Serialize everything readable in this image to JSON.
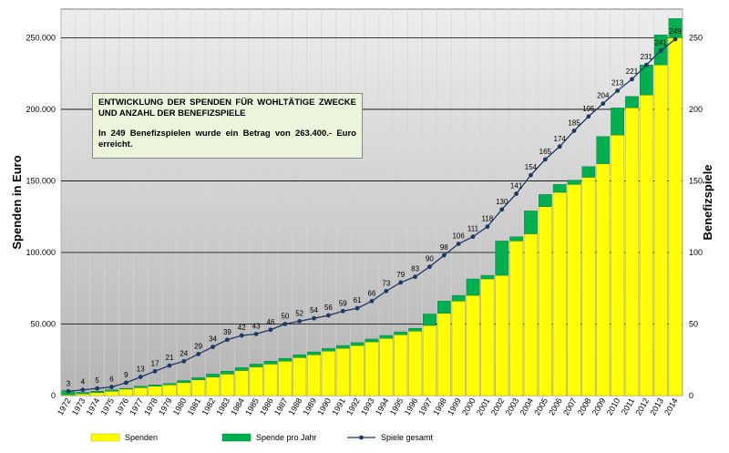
{
  "chart_data": {
    "type": "bar",
    "categories": [
      "1972",
      "1973",
      "1974",
      "1975",
      "1976",
      "1977",
      "1978",
      "1979",
      "1980",
      "1981",
      "1982",
      "1983",
      "1984",
      "1985",
      "1986",
      "1987",
      "1988",
      "1989",
      "1990",
      "1991",
      "1992",
      "1993",
      "1994",
      "1995",
      "1996",
      "1997",
      "1998",
      "1999",
      "2000",
      "2001",
      "2002",
      "2003",
      "2004",
      "2005",
      "2006",
      "2007",
      "2008",
      "2009",
      "2010",
      "2011",
      "2012",
      "2013",
      "2014"
    ],
    "series": [
      {
        "name": "Spenden",
        "kind": "bar",
        "axis": "left",
        "color": "#ffff00",
        "values": [
          500,
          1200,
          2000,
          3000,
          4500,
          5500,
          6500,
          7500,
          9000,
          11000,
          13000,
          15000,
          17500,
          20000,
          22000,
          24000,
          26500,
          28500,
          31000,
          33000,
          35000,
          37500,
          40000,
          42500,
          45000,
          49000,
          57500,
          66000,
          70000,
          81500,
          84000,
          108000,
          113000,
          132000,
          142000,
          147500,
          152500,
          162000,
          182000,
          201000,
          210000,
          231000,
          250000
        ]
      },
      {
        "name": "Spende pro Jahr",
        "kind": "bar-stacked",
        "axis": "left",
        "color": "#00b050",
        "values": [
          3000,
          1000,
          1000,
          1000,
          500,
          1000,
          1000,
          1000,
          1500,
          1500,
          2000,
          2000,
          2000,
          2000,
          2000,
          2000,
          2000,
          2000,
          2000,
          2000,
          2000,
          2000,
          2000,
          2000,
          2000,
          8000,
          8500,
          4000,
          11500,
          2500,
          24000,
          3000,
          16000,
          8500,
          5500,
          3000,
          7500,
          19000,
          19000,
          8000,
          21000,
          21000,
          13400
        ]
      },
      {
        "name": "Spiele gesamt",
        "kind": "line",
        "axis": "right",
        "color": "#1f3864",
        "values": [
          3,
          4,
          5,
          6,
          9,
          13,
          17,
          21,
          24,
          29,
          34,
          39,
          42,
          43,
          46,
          50,
          52,
          54,
          56,
          59,
          61,
          66,
          73,
          79,
          83,
          90,
          98,
          106,
          111,
          118,
          130,
          141,
          154,
          165,
          174,
          185,
          195,
          204,
          213,
          221,
          231,
          241,
          249
        ]
      }
    ],
    "y_left": {
      "label": "Spenden in Euro",
      "ticks": [
        "0",
        "50.000",
        "100.000",
        "150.000",
        "200.000",
        "250.000"
      ],
      "range": [
        0,
        270000
      ]
    },
    "y_right": {
      "label": "Benefizspiele",
      "ticks": [
        "0",
        "50",
        "100",
        "150",
        "200",
        "250"
      ],
      "range": [
        0,
        270
      ]
    },
    "grid": true,
    "legend_position": "bottom",
    "info_box": {
      "line1": "ENTWICKLUNG DER SPENDEN FÜR WOHLTÄTIGE ZWECKE UND ANZAHL DER BENEFIZSPIELE",
      "line2": "In 249 Benefizspielen wurde ein Betrag von 263.400.- Euro erreicht."
    }
  }
}
